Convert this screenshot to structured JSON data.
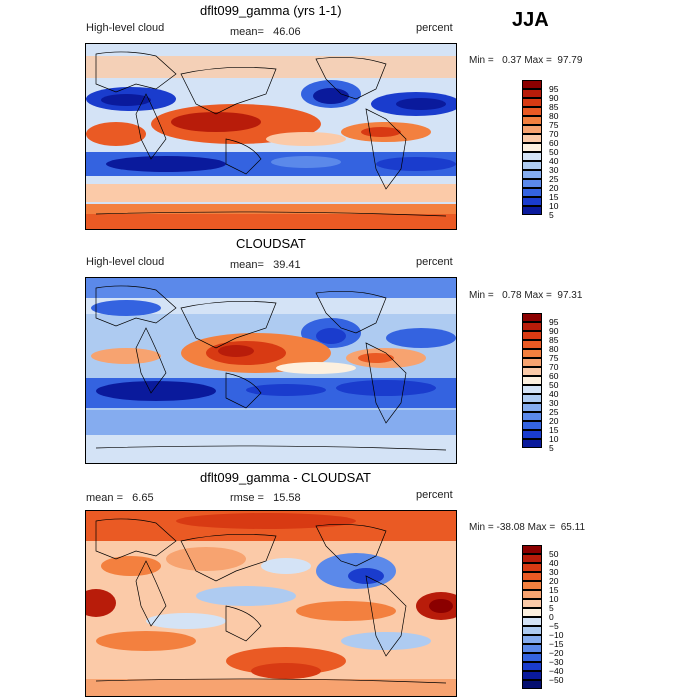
{
  "season": "JJA",
  "panels": [
    {
      "title": "dflt099_gamma (yrs 1-1)",
      "left_label": "High-level cloud",
      "stat_label": "mean=",
      "stat_value": "46.06",
      "right_label": "percent",
      "min_label": "Min =",
      "min_value": "0.37",
      "max_label": "Max =",
      "max_value": "97.79",
      "colorbar_levels": [
        "95",
        "90",
        "85",
        "80",
        "75",
        "70",
        "60",
        "50",
        "40",
        "30",
        "25",
        "20",
        "15",
        "10",
        "5"
      ],
      "colors": [
        "#8b0000",
        "#b81c0a",
        "#d83a13",
        "#ea5a24",
        "#f3803f",
        "#f7a370",
        "#fbcaa8",
        "#fdf0df",
        "#d4e3f6",
        "#aecbf1",
        "#85acef",
        "#5b89ea",
        "#3463e0",
        "#1a3ccd",
        "#0a1a9c"
      ]
    },
    {
      "title": "CLOUDSAT",
      "left_label": "High-level cloud",
      "stat_label": "mean=",
      "stat_value": "39.41",
      "right_label": "percent",
      "min_label": "Min =",
      "min_value": "0.78",
      "max_label": "Max =",
      "max_value": "97.31",
      "colorbar_levels": [
        "95",
        "90",
        "85",
        "80",
        "75",
        "70",
        "60",
        "50",
        "40",
        "30",
        "25",
        "20",
        "15",
        "10",
        "5"
      ],
      "colors": [
        "#8b0000",
        "#b81c0a",
        "#d83a13",
        "#ea5a24",
        "#f3803f",
        "#f7a370",
        "#fbcaa8",
        "#fdf0df",
        "#d4e3f6",
        "#aecbf1",
        "#85acef",
        "#5b89ea",
        "#3463e0",
        "#1a3ccd",
        "#0a1a9c"
      ]
    },
    {
      "title": "dflt099_gamma - CLOUDSAT",
      "left_label": "mean =",
      "left_value": "6.65",
      "stat_label": "rmse =",
      "stat_value": "15.58",
      "right_label": "percent",
      "min_label": "Min =",
      "min_value": "-38.08",
      "max_label": "Max =",
      "max_value": "65.11",
      "colorbar_levels": [
        "50",
        "40",
        "30",
        "20",
        "15",
        "10",
        "5",
        "0",
        "−5",
        "−10",
        "−15",
        "−20",
        "−30",
        "−40",
        "−50"
      ],
      "colors": [
        "#8b0000",
        "#b81c0a",
        "#d83a13",
        "#ea5a24",
        "#f3803f",
        "#f7a370",
        "#fbcaa8",
        "#fdf0df",
        "#d4e3f6",
        "#aecbf1",
        "#85acef",
        "#5b89ea",
        "#3463e0",
        "#1a3ccd",
        "#0a1a9c",
        "#050f70"
      ]
    }
  ]
}
